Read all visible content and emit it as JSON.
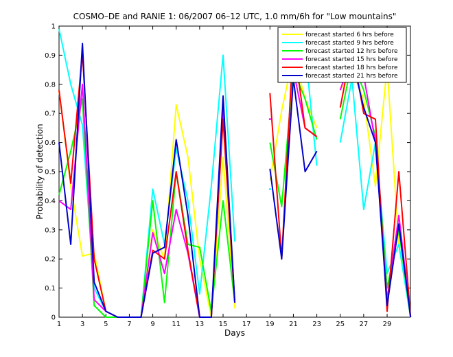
{
  "chart_data": {
    "type": "line",
    "title": "COSMO–DE and RANIE 1: 06/2007 06–12 UTC, 1.0 mm/6h for \"Low mountains\"",
    "xlabel": "Days",
    "ylabel": "Probability of detection",
    "xlim": [
      1,
      30.99
    ],
    "ylim": [
      0,
      1
    ],
    "x": [
      1,
      2,
      3,
      4,
      5,
      6,
      7,
      8,
      9,
      10,
      11,
      12,
      13,
      14,
      15,
      16,
      17,
      18,
      19,
      20,
      21,
      22,
      23,
      24,
      25,
      26,
      27,
      28,
      29,
      30,
      31
    ],
    "xticks": [
      "1",
      "3",
      "5",
      "7",
      "9",
      "11",
      "13",
      "15",
      "17",
      "19",
      "21",
      "23",
      "25",
      "27",
      "29"
    ],
    "xtick_values": [
      1,
      3,
      5,
      7,
      9,
      11,
      13,
      15,
      17,
      19,
      21,
      23,
      25,
      27,
      29
    ],
    "yticks": [
      "0",
      "0.1",
      "0.2",
      "0.3",
      "0.4",
      "0.5",
      "0.6",
      "0.7",
      "0.8",
      "0.9",
      "1"
    ],
    "ytick_values": [
      0,
      0.1,
      0.2,
      0.3,
      0.4,
      0.5,
      0.6,
      0.7,
      0.8,
      0.9,
      1
    ],
    "grid": false,
    "legend_position": "top-right",
    "series": [
      {
        "name": "forecast started 6 hrs before",
        "color": "#ffff00",
        "values": [
          0.78,
          0.45,
          0.21,
          0.22,
          0.02,
          0,
          0,
          0,
          0.3,
          0.2,
          0.73,
          0.55,
          0.2,
          0,
          0.55,
          0.03,
          null,
          null,
          0.47,
          0.71,
          0.9,
          0.75,
          0.65,
          null,
          0.78,
          0.85,
          0.75,
          0.45,
          0.86,
          0.25,
          0
        ]
      },
      {
        "name": "forecast started 9 hrs before",
        "color": "#00ffff",
        "values": [
          0.99,
          0.8,
          0.66,
          0.1,
          0.02,
          0,
          0,
          0,
          0.44,
          0.25,
          0.58,
          0.4,
          0.08,
          0.45,
          0.9,
          0.26,
          null,
          null,
          0.44,
          null,
          0.9,
          0.92,
          0.52,
          null,
          0.6,
          0.82,
          0.37,
          0.6,
          0.15,
          0.25,
          0
        ]
      },
      {
        "name": "forecast started 12 hrs before",
        "color": "#00ff00",
        "values": [
          0.42,
          0.57,
          0.75,
          0.04,
          0,
          0,
          0,
          0,
          0.4,
          0.05,
          0.5,
          0.25,
          0.24,
          0.02,
          0.4,
          0.05,
          null,
          null,
          0.6,
          0.38,
          0.85,
          0.75,
          0.61,
          null,
          0.68,
          0.88,
          0.78,
          0.62,
          0.1,
          0.3,
          0
        ]
      },
      {
        "name": "forecast started 15 hrs before",
        "color": "#ff00ff",
        "values": [
          0.4,
          0.37,
          0.8,
          0.06,
          0.02,
          0,
          0,
          0,
          0.29,
          0.15,
          0.37,
          0.22,
          0,
          0,
          0.72,
          0.05,
          null,
          null,
          0.68,
          null,
          0.85,
          0.65,
          0.62,
          null,
          0.78,
          0.9,
          0.83,
          0.6,
          0.06,
          0.35,
          0
        ]
      },
      {
        "name": "forecast started 18 hrs before",
        "color": "#ff0000",
        "values": [
          0.78,
          0.46,
          0.91,
          0.2,
          0.02,
          0,
          0,
          0,
          0.23,
          0.2,
          0.5,
          0.23,
          0,
          0,
          0.68,
          0.05,
          null,
          null,
          0.77,
          0.2,
          0.95,
          0.65,
          0.62,
          null,
          0.72,
          0.93,
          0.7,
          0.68,
          0.02,
          0.5,
          0
        ]
      },
      {
        "name": "forecast started 21 hrs before",
        "color": "#0000cc",
        "values": [
          0.6,
          0.25,
          0.94,
          0.12,
          0.02,
          0,
          0,
          0,
          0.22,
          0.24,
          0.61,
          0.35,
          0,
          0,
          0.76,
          0.05,
          null,
          null,
          0.51,
          0.2,
          0.82,
          0.5,
          0.57,
          null,
          0.82,
          0.89,
          0.72,
          0.6,
          0.04,
          0.32,
          0
        ]
      }
    ]
  }
}
